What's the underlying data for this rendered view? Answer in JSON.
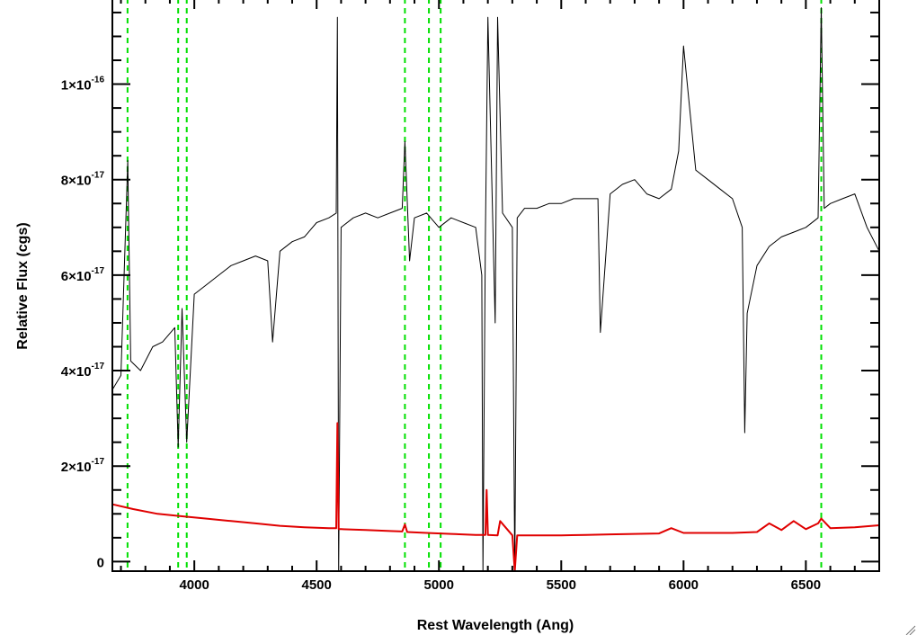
{
  "chart_data": {
    "type": "line",
    "xlabel": "Rest Wavelength (Ang)",
    "ylabel": "Relative Flux (cgs)",
    "xlim": [
      3665,
      6800
    ],
    "ylim": [
      -2e-18,
      1.18e-16
    ],
    "x_ticks": [
      4000,
      4500,
      5000,
      5500,
      6000,
      6500
    ],
    "x_tick_labels": [
      "4000",
      "4500",
      "5000",
      "5500",
      "6000",
      "6500"
    ],
    "y_ticks": [
      0,
      2e-17,
      4e-17,
      6e-17,
      8e-17,
      1e-16
    ],
    "y_tick_labels": [
      {
        "base": "0",
        "exp": ""
      },
      {
        "base": "2×10",
        "exp": "-17"
      },
      {
        "base": "4×10",
        "exp": "-17"
      },
      {
        "base": "6×10",
        "exp": "-17"
      },
      {
        "base": "8×10",
        "exp": "-17"
      },
      {
        "base": "1×10",
        "exp": "-16"
      }
    ],
    "grid": false,
    "reference_lines": {
      "color": "#00e000",
      "style": "dashed",
      "x": [
        3727,
        3934,
        3969,
        4861,
        4959,
        5007,
        6563
      ]
    },
    "series": [
      {
        "color": "#000000",
        "x": [
          3665,
          3700,
          3728,
          3740,
          3780,
          3830,
          3870,
          3920,
          3934,
          3950,
          3969,
          4000,
          4050,
          4100,
          4150,
          4200,
          4250,
          4300,
          4320,
          4350,
          4400,
          4450,
          4500,
          4550,
          4580,
          4585,
          4590,
          4600,
          4650,
          4700,
          4750,
          4800,
          4850,
          4861,
          4880,
          4900,
          4950,
          5000,
          5050,
          5100,
          5150,
          5175,
          5180,
          5190,
          5200,
          5230,
          5240,
          5260,
          5300,
          5310,
          5320,
          5350,
          5400,
          5450,
          5500,
          5550,
          5600,
          5650,
          5660,
          5700,
          5750,
          5800,
          5850,
          5900,
          5950,
          5980,
          6000,
          6050,
          6100,
          6150,
          6200,
          6240,
          6250,
          6260,
          6300,
          6350,
          6400,
          6450,
          6500,
          6550,
          6563,
          6575,
          6600,
          6650,
          6700,
          6750,
          6800
        ],
        "y": [
          3.6e-17,
          3.9e-17,
          8.4e-17,
          4.2e-17,
          4e-17,
          4.5e-17,
          4.6e-17,
          4.9e-17,
          2.4e-17,
          5.3e-17,
          2.5e-17,
          5.6e-17,
          5.8e-17,
          6e-17,
          6.2e-17,
          6.3e-17,
          6.4e-17,
          6.3e-17,
          4.6e-17,
          6.5e-17,
          6.7e-17,
          6.8e-17,
          7.1e-17,
          7.2e-17,
          7.3e-17,
          1.14e-16,
          -5e-18,
          7e-17,
          7.2e-17,
          7.3e-17,
          7.2e-17,
          7.3e-17,
          7.4e-17,
          8.8e-17,
          6.3e-17,
          7.2e-17,
          7.3e-17,
          7e-17,
          7.2e-17,
          7.1e-17,
          7e-17,
          6e-17,
          -5e-18,
          6.8e-17,
          1.14e-16,
          5e-17,
          1.14e-16,
          7.3e-17,
          7e-17,
          -5e-18,
          7.2e-17,
          7.4e-17,
          7.4e-17,
          7.5e-17,
          7.5e-17,
          7.6e-17,
          7.6e-17,
          7.6e-17,
          4.8e-17,
          7.7e-17,
          7.9e-17,
          8e-17,
          7.7e-17,
          7.6e-17,
          7.8e-17,
          8.6e-17,
          1.08e-16,
          8.2e-17,
          8e-17,
          7.8e-17,
          7.6e-17,
          7e-17,
          2.7e-17,
          5.2e-17,
          6.2e-17,
          6.6e-17,
          6.8e-17,
          6.9e-17,
          7e-17,
          7.2e-17,
          1.16e-16,
          7.4e-17,
          7.5e-17,
          7.6e-17,
          7.7e-17,
          7e-17,
          6.5e-17
        ]
      },
      {
        "color": "#e00000",
        "x": [
          3665,
          3750,
          3850,
          3950,
          4050,
          4150,
          4250,
          4350,
          4450,
          4550,
          4580,
          4585,
          4590,
          4600,
          4700,
          4800,
          4850,
          4861,
          4870,
          4950,
          5050,
          5150,
          5190,
          5195,
          5200,
          5240,
          5250,
          5300,
          5310,
          5320,
          5400,
          5500,
          5600,
          5700,
          5800,
          5900,
          5950,
          6000,
          6100,
          6200,
          6300,
          6350,
          6400,
          6450,
          6500,
          6550,
          6563,
          6600,
          6700,
          6800
        ],
        "y": [
          1.2e-17,
          1.1e-17,
          1e-17,
          9.5e-18,
          9e-18,
          8.5e-18,
          8e-18,
          7.5e-18,
          7.2e-18,
          7e-18,
          7e-18,
          2.9e-17,
          6.8e-18,
          6.8e-18,
          6.6e-18,
          6.4e-18,
          6.3e-18,
          7.8e-18,
          6.2e-18,
          6e-18,
          5.8e-18,
          5.6e-18,
          5.6e-18,
          1.5e-17,
          5.6e-18,
          5.5e-18,
          8.5e-18,
          5.5e-18,
          -2e-18,
          5.5e-18,
          5.5e-18,
          5.5e-18,
          5.6e-18,
          5.7e-18,
          5.8e-18,
          5.9e-18,
          7e-18,
          6e-18,
          6e-18,
          6e-18,
          6.2e-18,
          8e-18,
          6.6e-18,
          8.5e-18,
          6.8e-18,
          8e-18,
          9e-18,
          7e-18,
          7.2e-18,
          7.6e-18
        ]
      }
    ]
  }
}
